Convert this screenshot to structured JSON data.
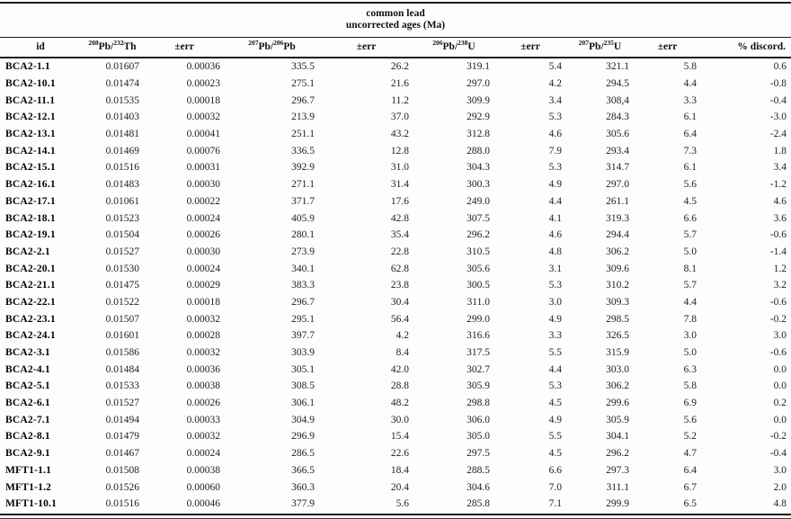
{
  "title": {
    "line1": "common lead",
    "line2": "uncorrected ages (Ma)"
  },
  "colors": {
    "text": "#1c1c2e",
    "id_text": "#05050a",
    "rule": "#1b1b1b",
    "background": "#fdfdfd"
  },
  "table": {
    "columns": [
      {
        "label": "id"
      },
      {
        "sup1": "208",
        "base1": "Pb/",
        "sup2": "232",
        "base2": "Th"
      },
      {
        "label": "±err"
      },
      {
        "sup1": "207",
        "base1": "Pb/",
        "sup2": "206",
        "base2": "Pb"
      },
      {
        "label": "±err"
      },
      {
        "sup1": "206",
        "base1": "Pb/",
        "sup2": "238",
        "base2": "U"
      },
      {
        "label": "±err"
      },
      {
        "sup1": "207",
        "base1": "Pb/",
        "sup2": "235",
        "base2": "U"
      },
      {
        "label": "±err"
      },
      {
        "label": "% discord."
      }
    ],
    "rows": [
      [
        "BCA2-1.1",
        "0.01607",
        "0.00036",
        "335.5",
        "26.2",
        "319.1",
        "5.4",
        "321.1",
        "5.8",
        "0.6"
      ],
      [
        "BCA2-10.1",
        "0.01474",
        "0.00023",
        "275.1",
        "21.6",
        "297.0",
        "4.2",
        "294.5",
        "4.4",
        "-0.8"
      ],
      [
        "BCA2-11.1",
        "0.01535",
        "0.00018",
        "296.7",
        "11.2",
        "309.9",
        "3.4",
        "308,4",
        "3.3",
        "-0.4"
      ],
      [
        "BCA2-12.1",
        "0.01403",
        "0.00032",
        "213.9",
        "37.0",
        "292.9",
        "5.3",
        "284.3",
        "6.1",
        "-3.0"
      ],
      [
        "BCA2-13.1",
        "0.01481",
        "0.00041",
        "251.1",
        "43.2",
        "312.8",
        "4.6",
        "305.6",
        "6.4",
        "-2.4"
      ],
      [
        "BCA2-14.1",
        "0.01469",
        "0.00076",
        "336.5",
        "12.8",
        "288.0",
        "7.9",
        "293.4",
        "7.3",
        "1.8"
      ],
      [
        "BCA2-15.1",
        "0.01516",
        "0.00031",
        "392.9",
        "31.0",
        "304.3",
        "5.3",
        "314.7",
        "6.1",
        "3.4"
      ],
      [
        "BCA2-16.1",
        "0.01483",
        "0.00030",
        "271.1",
        "31.4",
        "300.3",
        "4.9",
        "297.0",
        "5.6",
        "-1.2"
      ],
      [
        "BCA2-17.1",
        "0.01061",
        "0.00022",
        "371.7",
        "17.6",
        "249.0",
        "4.4",
        "261.1",
        "4.5",
        "4.6"
      ],
      [
        "BCA2-18.1",
        "0.01523",
        "0.00024",
        "405.9",
        "42.8",
        "307.5",
        "4.1",
        "319.3",
        "6.6",
        "3.6"
      ],
      [
        "BCA2-19.1",
        "0.01504",
        "0.00026",
        "280.1",
        "35.4",
        "296.2",
        "4.6",
        "294.4",
        "5.7",
        "-0.6"
      ],
      [
        "BCA2-2.1",
        "0.01527",
        "0.00030",
        "273.9",
        "22.8",
        "310.5",
        "4.8",
        "306.2",
        "5.0",
        "-1.4"
      ],
      [
        "BCA2-20.1",
        "0.01530",
        "0.00024",
        "340.1",
        "62.8",
        "305.6",
        "3.1",
        "309.6",
        "8.1",
        "1.2"
      ],
      [
        "BCA2-21.1",
        "0.01475",
        "0.00029",
        "383.3",
        "23.8",
        "300.5",
        "5.3",
        "310.2",
        "5.7",
        "3.2"
      ],
      [
        "BCA2-22.1",
        "0.01522",
        "0.00018",
        "296.7",
        "30.4",
        "311.0",
        "3.0",
        "309.3",
        "4.4",
        "-0.6"
      ],
      [
        "BCA2-23.1",
        "0.01507",
        "0.00032",
        "295.1",
        "56.4",
        "299.0",
        "4.9",
        "298.5",
        "7.8",
        "-0.2"
      ],
      [
        "BCA2-24.1",
        "0.01601",
        "0.00028",
        "397.7",
        "4.2",
        "316.6",
        "3.3",
        "326.5",
        "3.0",
        "3.0"
      ],
      [
        "BCA2-3.1",
        "0.01586",
        "0.00032",
        "303.9",
        "8.4",
        "317.5",
        "5.5",
        "315.9",
        "5.0",
        "-0.6"
      ],
      [
        "BCA2-4.1",
        "0.01484",
        "0.00036",
        "305.1",
        "42.0",
        "302.7",
        "4.4",
        "303.0",
        "6.3",
        "0.0"
      ],
      [
        "BCA2-5.1",
        "0.01533",
        "0.00038",
        "308.5",
        "28.8",
        "305.9",
        "5.3",
        "306.2",
        "5.8",
        "0.0"
      ],
      [
        "BCA2-6.1",
        "0.01527",
        "0.00026",
        "306.1",
        "48.2",
        "298.8",
        "4.5",
        "299.6",
        "6.9",
        "0.2"
      ],
      [
        "BCA2-7.1",
        "0.01494",
        "0.00033",
        "304.9",
        "30.0",
        "306.0",
        "4.9",
        "305.9",
        "5.6",
        "0.0"
      ],
      [
        "BCA2-8.1",
        "0.01479",
        "0.00032",
        "296.9",
        "15.4",
        "305.0",
        "5.5",
        "304.1",
        "5.2",
        "-0.2"
      ],
      [
        "BCA2-9.1",
        "0.01467",
        "0.00024",
        "286.5",
        "22.6",
        "297.5",
        "4.5",
        "296.2",
        "4.7",
        "-0.4"
      ],
      [
        "MFT1-1.1",
        "0.01508",
        "0.00038",
        "366.5",
        "18.4",
        "288.5",
        "6.6",
        "297.3",
        "6.4",
        "3.0"
      ],
      [
        "MFT1-1.2",
        "0.01526",
        "0.00060",
        "360.3",
        "20.4",
        "304.6",
        "7.0",
        "311.1",
        "6.7",
        "2.0"
      ],
      [
        "MFT1-10.1",
        "0.01516",
        "0.00046",
        "377.9",
        "5.6",
        "285.8",
        "7.1",
        "299.9",
        "6.5",
        "4.8"
      ]
    ]
  }
}
